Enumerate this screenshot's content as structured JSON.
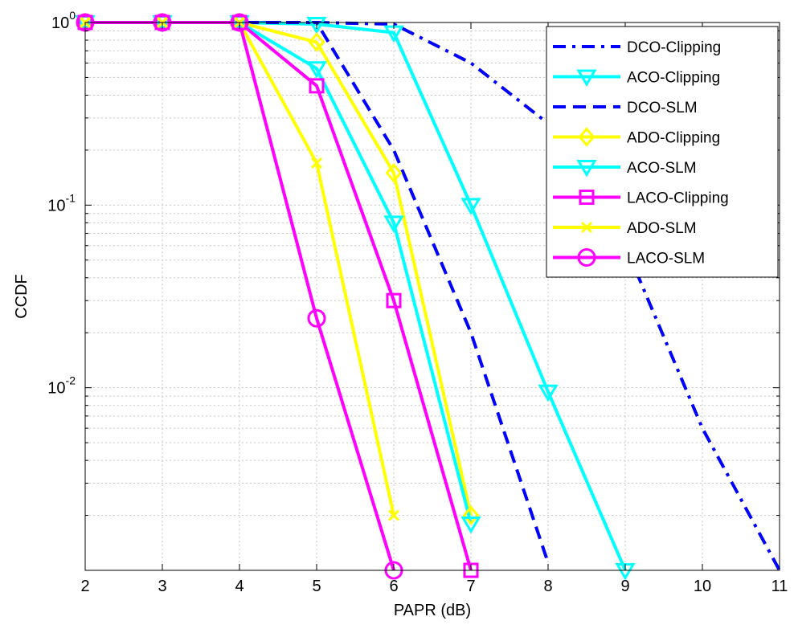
{
  "chart_data": {
    "type": "line",
    "title": "",
    "xlabel": "PAPR (dB)",
    "ylabel": "CCDF",
    "x_ticks": [
      2,
      3,
      4,
      5,
      6,
      7,
      8,
      9,
      10,
      11
    ],
    "xlim": [
      2,
      11
    ],
    "y_scale": "log",
    "ylim": [
      0.001,
      1
    ],
    "y_ticks": [
      {
        "value": 1,
        "base": "10",
        "exp": "0"
      },
      {
        "value": 0.1,
        "base": "10",
        "exp": "-1"
      },
      {
        "value": 0.01,
        "base": "10",
        "exp": "-2"
      }
    ],
    "grid": true,
    "legend_position": "top-right",
    "series": [
      {
        "name": "DCO-Clipping",
        "color": "#0000ff",
        "dash": "dashdot",
        "marker": "none",
        "x": [
          2,
          3,
          4,
          5,
          6,
          7,
          8,
          9,
          10,
          11
        ],
        "y": [
          1,
          1,
          1,
          1,
          0.98,
          0.6,
          0.28,
          0.06,
          0.006,
          0.001
        ]
      },
      {
        "name": "ACO-Clipping",
        "color": "#00ffff",
        "dash": "solid",
        "marker": "triangle-down",
        "x": [
          2,
          3,
          4,
          5,
          6,
          7,
          8,
          9
        ],
        "y": [
          1,
          1,
          1,
          0.98,
          0.88,
          0.1,
          0.0095,
          0.001
        ]
      },
      {
        "name": "DCO-SLM",
        "color": "#0000ff",
        "dash": "dashed",
        "marker": "none",
        "x": [
          2,
          3,
          4,
          5,
          6,
          7,
          8
        ],
        "y": [
          1,
          1,
          1,
          1,
          0.2,
          0.02,
          0.0011
        ]
      },
      {
        "name": "ADO-Clipping",
        "color": "#ffff00",
        "dash": "solid",
        "marker": "diamond",
        "x": [
          2,
          3,
          4,
          5,
          6,
          7
        ],
        "y": [
          1,
          1,
          1,
          0.78,
          0.15,
          0.002
        ]
      },
      {
        "name": "ACO-SLM",
        "color": "#00ffff",
        "dash": "solid",
        "marker": "triangle-down",
        "x": [
          2,
          3,
          4,
          5,
          6,
          7
        ],
        "y": [
          1,
          1,
          1,
          0.56,
          0.08,
          0.0018
        ]
      },
      {
        "name": "LACO-Clipping",
        "color": "#ff00ff",
        "dash": "solid",
        "marker": "square",
        "x": [
          2,
          3,
          4,
          5,
          6,
          7
        ],
        "y": [
          1,
          1,
          1,
          0.45,
          0.03,
          0.001
        ]
      },
      {
        "name": "ADO-SLM",
        "color": "#ffff00",
        "dash": "solid",
        "marker": "x",
        "x": [
          2,
          3,
          4,
          5,
          6
        ],
        "y": [
          1,
          1,
          1,
          0.17,
          0.002
        ]
      },
      {
        "name": "LACO-SLM",
        "color": "#ff00ff",
        "dash": "solid",
        "marker": "circle",
        "x": [
          2,
          3,
          4,
          5,
          6
        ],
        "y": [
          1,
          1,
          1,
          0.024,
          0.001
        ]
      }
    ]
  }
}
